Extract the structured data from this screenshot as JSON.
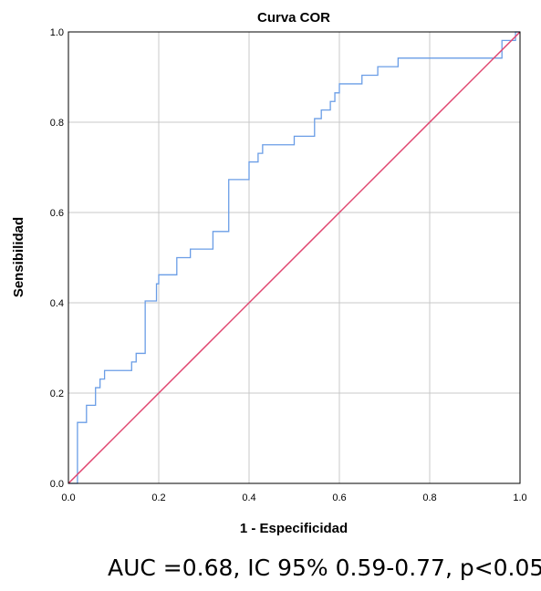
{
  "chart_data": {
    "type": "line",
    "title": "Curva COR",
    "xlabel": "1 - Especificidad",
    "ylabel": "Sensibilidad",
    "xlim": [
      0,
      1
    ],
    "ylim": [
      0,
      1
    ],
    "grid": true,
    "x_ticks": [
      {
        "value": 0.0,
        "label": "0.0"
      },
      {
        "value": 0.2,
        "label": "0.2"
      },
      {
        "value": 0.4,
        "label": "0.4"
      },
      {
        "value": 0.6,
        "label": "0.6"
      },
      {
        "value": 0.8,
        "label": "0.8"
      },
      {
        "value": 1.0,
        "label": "1.0"
      }
    ],
    "y_ticks": [
      {
        "value": 0.0,
        "label": "0.0"
      },
      {
        "value": 0.2,
        "label": "0.2"
      },
      {
        "value": 0.4,
        "label": "0.4"
      },
      {
        "value": 0.6,
        "label": "0.6"
      },
      {
        "value": 0.8,
        "label": "0.8"
      },
      {
        "value": 1.0,
        "label": "1.0"
      }
    ],
    "series": [
      {
        "color": "#6a9de6",
        "step": true,
        "points": [
          [
            0.0,
            0.0
          ],
          [
            0.02,
            0.0
          ],
          [
            0.02,
            0.135
          ],
          [
            0.04,
            0.135
          ],
          [
            0.04,
            0.173
          ],
          [
            0.06,
            0.173
          ],
          [
            0.06,
            0.212
          ],
          [
            0.07,
            0.212
          ],
          [
            0.07,
            0.231
          ],
          [
            0.08,
            0.231
          ],
          [
            0.08,
            0.25
          ],
          [
            0.14,
            0.25
          ],
          [
            0.14,
            0.269
          ],
          [
            0.15,
            0.269
          ],
          [
            0.15,
            0.288
          ],
          [
            0.17,
            0.288
          ],
          [
            0.17,
            0.404
          ],
          [
            0.195,
            0.404
          ],
          [
            0.195,
            0.442
          ],
          [
            0.2,
            0.442
          ],
          [
            0.2,
            0.462
          ],
          [
            0.24,
            0.462
          ],
          [
            0.24,
            0.5
          ],
          [
            0.27,
            0.5
          ],
          [
            0.27,
            0.519
          ],
          [
            0.32,
            0.519
          ],
          [
            0.32,
            0.558
          ],
          [
            0.355,
            0.558
          ],
          [
            0.355,
            0.673
          ],
          [
            0.4,
            0.673
          ],
          [
            0.4,
            0.712
          ],
          [
            0.42,
            0.712
          ],
          [
            0.42,
            0.731
          ],
          [
            0.43,
            0.731
          ],
          [
            0.43,
            0.75
          ],
          [
            0.5,
            0.75
          ],
          [
            0.5,
            0.769
          ],
          [
            0.545,
            0.769
          ],
          [
            0.545,
            0.808
          ],
          [
            0.56,
            0.808
          ],
          [
            0.56,
            0.827
          ],
          [
            0.58,
            0.827
          ],
          [
            0.58,
            0.846
          ],
          [
            0.59,
            0.846
          ],
          [
            0.59,
            0.865
          ],
          [
            0.6,
            0.865
          ],
          [
            0.6,
            0.885
          ],
          [
            0.65,
            0.885
          ],
          [
            0.65,
            0.904
          ],
          [
            0.685,
            0.904
          ],
          [
            0.685,
            0.923
          ],
          [
            0.73,
            0.923
          ],
          [
            0.73,
            0.942
          ],
          [
            0.96,
            0.942
          ],
          [
            0.96,
            0.981
          ],
          [
            0.99,
            0.981
          ],
          [
            0.99,
            1.0
          ],
          [
            1.0,
            1.0
          ]
        ]
      },
      {
        "color": "#e0456f",
        "step": false,
        "points": [
          [
            0.0,
            0.0
          ],
          [
            1.0,
            1.0
          ]
        ]
      }
    ]
  },
  "caption": "AUC =0.68, IC 95% 0.59-0.77, p<0.05"
}
